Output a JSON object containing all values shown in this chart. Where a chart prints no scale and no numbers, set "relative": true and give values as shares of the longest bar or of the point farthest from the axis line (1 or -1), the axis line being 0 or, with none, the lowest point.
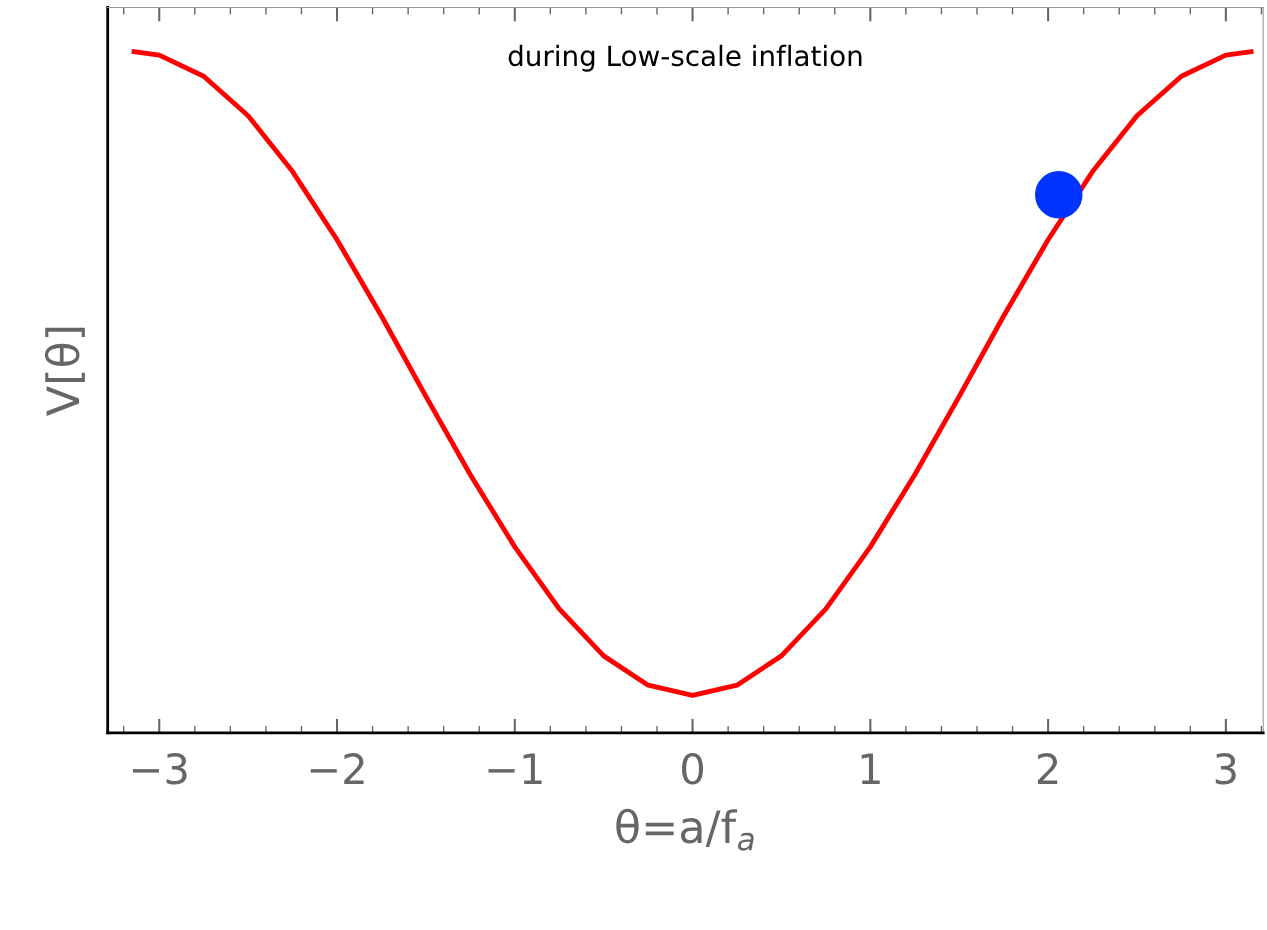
{
  "chart_data": {
    "type": "line",
    "relative": true,
    "xlabel": "θ=a/f$_{a}$",
    "ylabel": "V[θ]",
    "annotations": [
      "during Low-scale inflation"
    ],
    "xlim": [
      -3.29,
      3.21
    ],
    "xticks": [
      {
        "value": -3,
        "label": "−3"
      },
      {
        "value": -2,
        "label": "−2"
      },
      {
        "value": -1,
        "label": "−1"
      },
      0,
      1,
      2,
      3
    ],
    "grid": false,
    "tick_labels": "x",
    "series": [
      {
        "color": "#ff0000",
        "marker": "none",
        "line_style": "solid",
        "x": [
          -3.1416,
          -3.0,
          -2.75,
          -2.5,
          -2.25,
          -2.0,
          -1.75,
          -1.5,
          -1.25,
          -1.0,
          -0.75,
          -0.5,
          -0.25,
          0,
          0.25,
          0.5,
          0.75,
          1.0,
          1.25,
          1.5,
          1.75,
          2.0,
          2.25,
          2.5,
          2.75,
          3.0,
          3.1416
        ],
        "values": [
          1.0,
          0.995,
          0.964,
          0.906,
          0.824,
          0.724,
          0.612,
          0.494,
          0.379,
          0.273,
          0.182,
          0.113,
          0.07,
          0.055,
          0.07,
          0.113,
          0.182,
          0.273,
          0.379,
          0.494,
          0.612,
          0.724,
          0.824,
          0.906,
          0.964,
          0.995,
          1.0
        ]
      },
      {
        "type": "scatter",
        "color": "#0033ff",
        "marker": "circle",
        "x": [
          2.06
        ],
        "values": [
          0.79
        ]
      }
    ]
  }
}
